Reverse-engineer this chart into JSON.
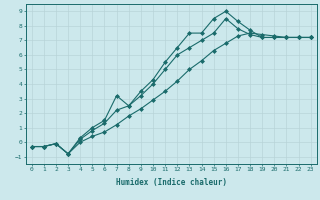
{
  "xlabel": "Humidex (Indice chaleur)",
  "xlim": [
    -0.5,
    23.5
  ],
  "ylim": [
    -1.5,
    9.5
  ],
  "xticks": [
    0,
    1,
    2,
    3,
    4,
    5,
    6,
    7,
    8,
    9,
    10,
    11,
    12,
    13,
    14,
    15,
    16,
    17,
    18,
    19,
    20,
    21,
    22,
    23
  ],
  "yticks": [
    -1,
    0,
    1,
    2,
    3,
    4,
    5,
    6,
    7,
    8,
    9
  ],
  "bg_color": "#cce8ec",
  "line_color": "#1a6b6b",
  "grid_color": "#b8d4d8",
  "curveA_x": [
    0,
    1,
    2,
    3,
    4,
    5,
    6,
    7,
    8,
    9,
    10,
    11,
    12,
    13,
    14,
    15,
    16,
    17,
    18,
    19,
    20,
    21,
    22,
    23
  ],
  "curveA_y": [
    -0.3,
    -0.3,
    -0.1,
    -0.8,
    0.3,
    1.0,
    1.5,
    3.2,
    2.5,
    3.5,
    4.3,
    5.5,
    6.5,
    7.5,
    7.5,
    8.5,
    9.0,
    8.3,
    7.7,
    7.2,
    7.2,
    7.2,
    7.2,
    7.2
  ],
  "curveB_x": [
    0,
    1,
    2,
    3,
    4,
    5,
    6,
    7,
    8,
    9,
    10,
    11,
    12,
    13,
    14,
    15,
    16,
    17,
    18,
    19,
    20,
    21,
    22,
    23
  ],
  "curveB_y": [
    -0.3,
    -0.3,
    -0.1,
    -0.8,
    0.2,
    0.8,
    1.3,
    2.2,
    2.5,
    3.2,
    4.0,
    5.0,
    6.0,
    6.5,
    7.0,
    7.5,
    8.5,
    7.8,
    7.4,
    7.2,
    7.2,
    7.2,
    7.2,
    7.2
  ],
  "curveC_x": [
    0,
    1,
    2,
    3,
    4,
    5,
    6,
    7,
    8,
    9,
    10,
    11,
    12,
    13,
    14,
    15,
    16,
    17,
    18,
    19,
    20,
    21,
    22,
    23
  ],
  "curveC_y": [
    -0.3,
    -0.3,
    -0.1,
    -0.8,
    0.0,
    0.4,
    0.7,
    1.2,
    1.8,
    2.3,
    2.9,
    3.5,
    4.2,
    5.0,
    5.6,
    6.3,
    6.8,
    7.3,
    7.5,
    7.4,
    7.3,
    7.2,
    7.2,
    7.2
  ]
}
